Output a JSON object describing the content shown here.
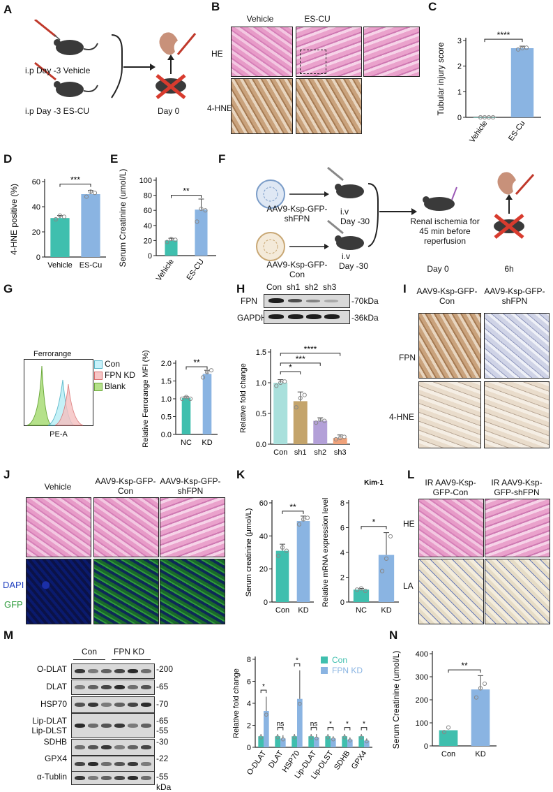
{
  "panels": {
    "A": {
      "label": "A",
      "vehicle": "i.p Day -3 Vehicle",
      "escu": "i.p Day -3 ES-CU",
      "day0": "Day 0"
    },
    "B": {
      "label": "B",
      "col1": "Vehicle",
      "col2": "ES-CU",
      "row1": "HE",
      "row2": "4-HNE"
    },
    "C": {
      "label": "C",
      "ylabel": "Tubular injury score",
      "cats": [
        "Vehicle",
        "ES-Cu"
      ],
      "sig": "****"
    },
    "D": {
      "label": "D",
      "ylabel": "4-HNE positive (%)",
      "cats": [
        "Vehicle",
        "ES-Cu"
      ],
      "sig": "***"
    },
    "E": {
      "label": "E",
      "ylabel": "Serum Creatinine (umol/L)",
      "cats": [
        "Vehicle",
        "ES-CU"
      ],
      "sig": "**"
    },
    "F": {
      "label": "F",
      "vec1": "AAV9-Ksp-GFP-shFPN",
      "vec2": "AAV9-Ksp-GFP-Con",
      "iv1a": "i.v",
      "iv1b": "Day -30",
      "iv2a": "i.v",
      "iv2b": "Day -30",
      "ischemia1": "Renal ischemia for",
      "ischemia2": "45 min before",
      "ischemia3": "reperfusion",
      "day0": "Day 0",
      "h6": "6h"
    },
    "G": {
      "label": "G",
      "flow_title": "Ferrorange",
      "flow_x": "PE-A",
      "legend": [
        "Con",
        "FPN KD",
        "Blank"
      ],
      "ylabel": "Relative Ferrorange MFI (%)",
      "cats": [
        "NC",
        "KD"
      ],
      "sig": "**"
    },
    "H": {
      "label": "H",
      "lanes": [
        "Con",
        "sh1",
        "sh2",
        "sh3"
      ],
      "rows": [
        "FPN",
        "GAPDH"
      ],
      "sizes": [
        "-70kDa",
        "-36kDa"
      ],
      "ylabel": "Relative fold change",
      "cats": [
        "Con",
        "sh1",
        "sh2",
        "sh3"
      ],
      "sigs": [
        "*",
        "***",
        "****"
      ]
    },
    "I": {
      "label": "I",
      "col1": "AAV9-Ksp-GFP-Con",
      "col2": "AAV9-Ksp-GFP-shFPN",
      "row1": "FPN",
      "row2": "4-HNE"
    },
    "J": {
      "label": "J",
      "col1": "Vehicle",
      "col2": "AAV9-Ksp-GFP-Con",
      "col3": "AAV9-Ksp-GFP-shFPN",
      "row2a": "DAPI",
      "row2b": "GFP"
    },
    "K": {
      "label": "K",
      "ylabel1": "Serum creatinine (μmol/L)",
      "cats1": [
        "Con",
        "KD"
      ],
      "sig1": "**",
      "title2": "Kim-1",
      "ylabel2": "Relative mRNA expression level",
      "cats2": [
        "NC",
        "KD"
      ],
      "sig2": "*"
    },
    "L": {
      "label": "L",
      "col1": "IR AAV9-Ksp-GFP-Con",
      "col2": "IR AAV9-Ksp-GFP-shFPN",
      "row1": "HE",
      "row2": "LA"
    },
    "M": {
      "label": "M",
      "groups": [
        "Con",
        "FPN KD"
      ],
      "rows": [
        "O-DLAT",
        "DLAT",
        "HSP70",
        "Lip-DLAT",
        "Lip-DLST",
        "SDHB",
        "GPX4",
        "α-Tublin"
      ],
      "sizes": [
        "-200",
        "-65",
        "-70",
        "-65",
        "-55",
        "-30",
        "-22",
        "-55"
      ],
      "kda": "kDa",
      "ylabel": "Relative fold change",
      "cats": [
        "O-DLAT",
        "DLAT",
        "HSP70",
        "Lip-DLAT",
        "Lip-DLST",
        "SDHB",
        "GPX4"
      ],
      "sigs": [
        "*",
        "ns",
        "*",
        "ns",
        "*",
        "*",
        "*"
      ],
      "legend": [
        "Con",
        "FPN KD"
      ]
    },
    "N": {
      "label": "N",
      "ylabel": "Serum Creatinine (umol/L)",
      "cats": [
        "Con",
        "KD"
      ],
      "sig": "**"
    }
  },
  "chart_data": [
    {
      "type": "bar",
      "panel": "C",
      "categories": [
        "Vehicle",
        "ES-Cu"
      ],
      "values": [
        0.0,
        2.7
      ],
      "ylim": [
        0,
        3
      ],
      "yticks": [
        0,
        1,
        2,
        3
      ],
      "ylabel": "Tubular injury score"
    },
    {
      "type": "bar",
      "panel": "D",
      "categories": [
        "Vehicle",
        "ES-Cu"
      ],
      "values": [
        31,
        50
      ],
      "ylim": [
        0,
        60
      ],
      "yticks": [
        0,
        20,
        40,
        60
      ],
      "ylabel": "4-HNE positive (%)"
    },
    {
      "type": "bar",
      "panel": "E",
      "categories": [
        "Vehicle",
        "ES-CU"
      ],
      "values": [
        20,
        61
      ],
      "ylim": [
        0,
        100
      ],
      "yticks": [
        0,
        20,
        40,
        60,
        80,
        100
      ],
      "ylabel": "Serum Creatinine (umol/L)"
    },
    {
      "type": "bar",
      "panel": "G",
      "categories": [
        "NC",
        "KD"
      ],
      "values": [
        1.02,
        1.7
      ],
      "ylim": [
        0,
        2.0
      ],
      "yticks": [
        0.0,
        0.5,
        1.0,
        1.5,
        2.0
      ],
      "ylabel": "Relative Ferrorange MFI (%)"
    },
    {
      "type": "bar",
      "panel": "H",
      "categories": [
        "Con",
        "sh1",
        "sh2",
        "sh3"
      ],
      "values": [
        1.0,
        0.7,
        0.38,
        0.1
      ],
      "ylim": [
        0,
        1.5
      ],
      "yticks": [
        0.0,
        0.5,
        1.0,
        1.5
      ],
      "ylabel": "Relative fold change"
    },
    {
      "type": "bar",
      "panel": "K1",
      "categories": [
        "Con",
        "KD"
      ],
      "values": [
        31,
        49
      ],
      "ylim": [
        0,
        60
      ],
      "yticks": [
        0,
        20,
        40,
        60
      ],
      "ylabel": "Serum creatinine (μmol/L)"
    },
    {
      "type": "bar",
      "panel": "K2",
      "categories": [
        "NC",
        "KD"
      ],
      "values": [
        1.0,
        3.8
      ],
      "ylim": [
        0,
        8
      ],
      "yticks": [
        0,
        2,
        4,
        6,
        8
      ],
      "ylabel": "Relative mRNA expression level",
      "title": "Kim-1"
    },
    {
      "type": "bar",
      "panel": "M",
      "categories": [
        "O-DLAT",
        "DLAT",
        "HSP70",
        "Lip-DLAT",
        "Lip-DLST",
        "SDHB",
        "GPX4"
      ],
      "series": [
        {
          "name": "Con",
          "values": [
            1.0,
            1.0,
            1.0,
            1.0,
            1.0,
            1.0,
            1.0
          ]
        },
        {
          "name": "FPN KD",
          "values": [
            3.3,
            0.8,
            4.4,
            0.9,
            0.8,
            0.7,
            0.6
          ]
        }
      ],
      "ylim": [
        0,
        8
      ],
      "yticks": [
        0,
        2,
        4,
        6,
        8
      ],
      "ylabel": "Relative fold change"
    },
    {
      "type": "bar",
      "panel": "N",
      "categories": [
        "Con",
        "KD"
      ],
      "values": [
        68,
        245
      ],
      "ylim": [
        0,
        400
      ],
      "yticks": [
        0,
        100,
        200,
        300,
        400
      ],
      "ylabel": "Serum Creatinine (umol/L)"
    }
  ]
}
